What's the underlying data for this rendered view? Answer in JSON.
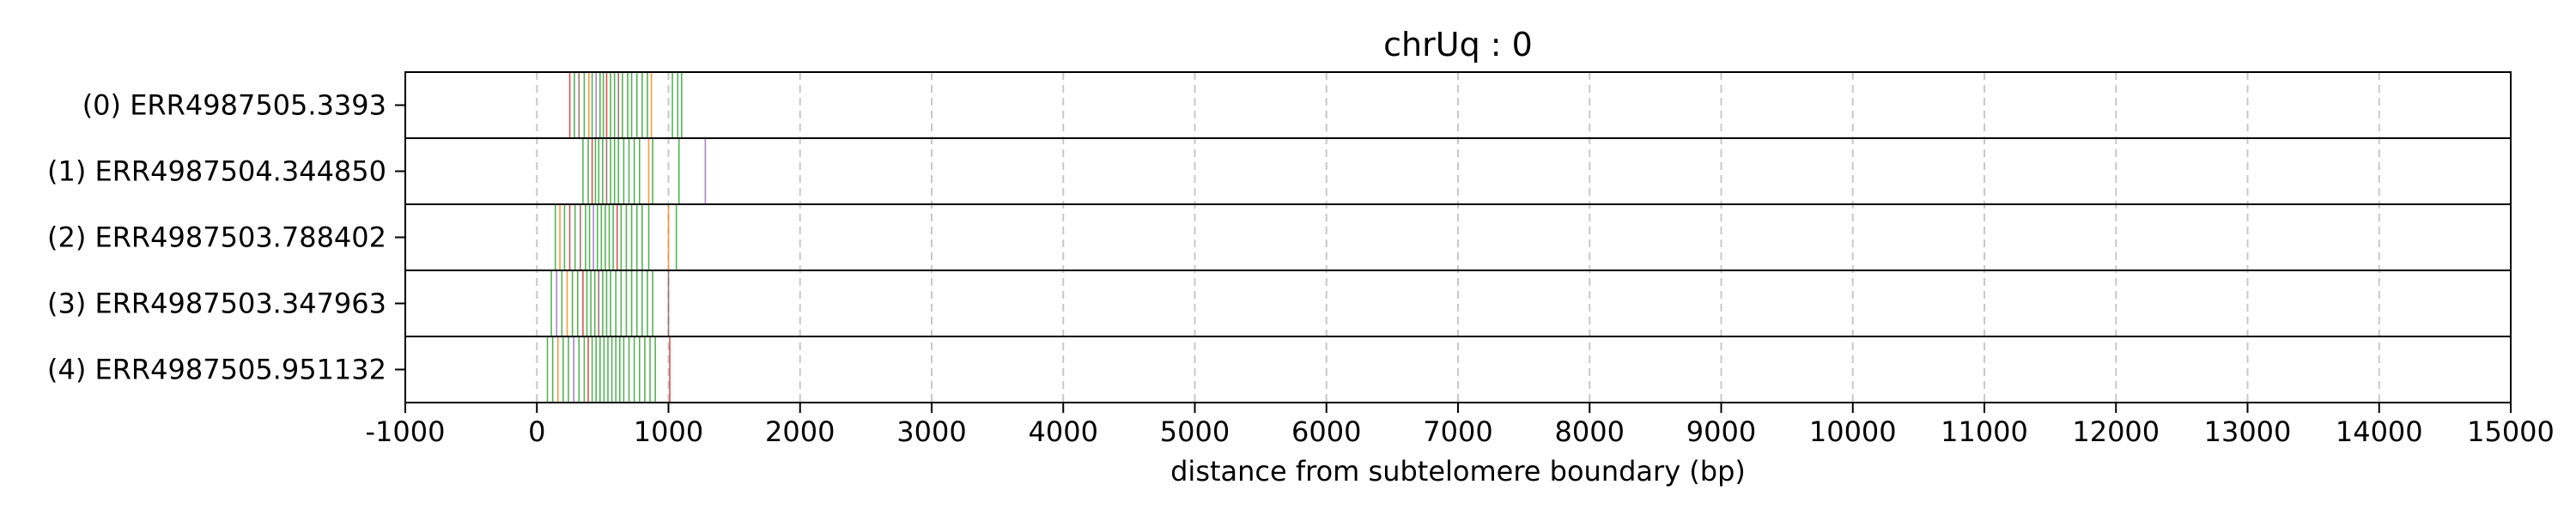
{
  "chart_data": {
    "type": "read-track",
    "title": "chrUq : 0",
    "xlabel": "distance from subtelomere boundary (bp)",
    "ylabel": "",
    "xlim": [
      -1000,
      15000
    ],
    "x_ticks": [
      -1000,
      0,
      1000,
      2000,
      3000,
      4000,
      5000,
      6000,
      7000,
      8000,
      9000,
      10000,
      11000,
      12000,
      13000,
      14000,
      15000
    ],
    "x_tick_labels": [
      "-1000",
      "0",
      "1000",
      "2000",
      "3000",
      "4000",
      "5000",
      "6000",
      "7000",
      "8000",
      "9000",
      "10000",
      "11000",
      "12000",
      "13000",
      "14000",
      "15000"
    ],
    "grid": "vertical dashed at x ticks",
    "tracks": [
      {
        "label": "(0) ERR4987505.3393",
        "marks": [
          {
            "x": 250,
            "color": "#d62728"
          },
          {
            "x": 285,
            "color": "#2ca02c"
          },
          {
            "x": 320,
            "color": "#8c564b"
          },
          {
            "x": 360,
            "color": "#2ca02c"
          },
          {
            "x": 395,
            "color": "#ff7f0e"
          },
          {
            "x": 420,
            "color": "#2ca02c"
          },
          {
            "x": 450,
            "color": "#9467bd"
          },
          {
            "x": 480,
            "color": "#2ca02c"
          },
          {
            "x": 505,
            "color": "#2ca02c"
          },
          {
            "x": 530,
            "color": "#d62728"
          },
          {
            "x": 560,
            "color": "#2ca02c"
          },
          {
            "x": 590,
            "color": "#2ca02c"
          },
          {
            "x": 620,
            "color": "#8c564b"
          },
          {
            "x": 650,
            "color": "#2ca02c"
          },
          {
            "x": 690,
            "color": "#2ca02c"
          },
          {
            "x": 720,
            "color": "#2ca02c"
          },
          {
            "x": 760,
            "color": "#2ca02c"
          },
          {
            "x": 800,
            "color": "#2ca02c"
          },
          {
            "x": 840,
            "color": "#2ca02c"
          },
          {
            "x": 870,
            "color": "#ff7f0e"
          },
          {
            "x": 1030,
            "color": "#2ca02c"
          },
          {
            "x": 1070,
            "color": "#2ca02c"
          },
          {
            "x": 1100,
            "color": "#2ca02c"
          }
        ]
      },
      {
        "label": "(1) ERR4987504.344850",
        "marks": [
          {
            "x": 350,
            "color": "#2ca02c"
          },
          {
            "x": 390,
            "color": "#2ca02c"
          },
          {
            "x": 420,
            "color": "#d62728"
          },
          {
            "x": 445,
            "color": "#2ca02c"
          },
          {
            "x": 470,
            "color": "#2ca02c"
          },
          {
            "x": 500,
            "color": "#2ca02c"
          },
          {
            "x": 530,
            "color": "#8c564b"
          },
          {
            "x": 560,
            "color": "#2ca02c"
          },
          {
            "x": 590,
            "color": "#2ca02c"
          },
          {
            "x": 620,
            "color": "#2ca02c"
          },
          {
            "x": 660,
            "color": "#2ca02c"
          },
          {
            "x": 700,
            "color": "#2ca02c"
          },
          {
            "x": 740,
            "color": "#2ca02c"
          },
          {
            "x": 780,
            "color": "#2ca02c"
          },
          {
            "x": 850,
            "color": "#ff7f0e"
          },
          {
            "x": 880,
            "color": "#2ca02c"
          },
          {
            "x": 1080,
            "color": "#2ca02c"
          },
          {
            "x": 1280,
            "color": "#9467bd"
          }
        ]
      },
      {
        "label": "(2) ERR4987503.788402",
        "marks": [
          {
            "x": 140,
            "color": "#2ca02c"
          },
          {
            "x": 175,
            "color": "#ff7f0e"
          },
          {
            "x": 210,
            "color": "#2ca02c"
          },
          {
            "x": 250,
            "color": "#d62728"
          },
          {
            "x": 290,
            "color": "#2ca02c"
          },
          {
            "x": 330,
            "color": "#8c564b"
          },
          {
            "x": 370,
            "color": "#2ca02c"
          },
          {
            "x": 400,
            "color": "#2ca02c"
          },
          {
            "x": 430,
            "color": "#9467bd"
          },
          {
            "x": 460,
            "color": "#2ca02c"
          },
          {
            "x": 490,
            "color": "#2ca02c"
          },
          {
            "x": 520,
            "color": "#2ca02c"
          },
          {
            "x": 550,
            "color": "#2ca02c"
          },
          {
            "x": 580,
            "color": "#2ca02c"
          },
          {
            "x": 610,
            "color": "#d62728"
          },
          {
            "x": 640,
            "color": "#2ca02c"
          },
          {
            "x": 680,
            "color": "#2ca02c"
          },
          {
            "x": 720,
            "color": "#2ca02c"
          },
          {
            "x": 760,
            "color": "#2ca02c"
          },
          {
            "x": 800,
            "color": "#2ca02c"
          },
          {
            "x": 850,
            "color": "#2ca02c"
          },
          {
            "x": 1000,
            "color": "#ff7f0e"
          },
          {
            "x": 1060,
            "color": "#2ca02c"
          }
        ]
      },
      {
        "label": "(3) ERR4987503.347963",
        "marks": [
          {
            "x": 110,
            "color": "#2ca02c"
          },
          {
            "x": 150,
            "color": "#9467bd"
          },
          {
            "x": 190,
            "color": "#2ca02c"
          },
          {
            "x": 230,
            "color": "#ff7f0e"
          },
          {
            "x": 270,
            "color": "#2ca02c"
          },
          {
            "x": 310,
            "color": "#2ca02c"
          },
          {
            "x": 350,
            "color": "#d62728"
          },
          {
            "x": 380,
            "color": "#2ca02c"
          },
          {
            "x": 410,
            "color": "#2ca02c"
          },
          {
            "x": 440,
            "color": "#2ca02c"
          },
          {
            "x": 470,
            "color": "#8c564b"
          },
          {
            "x": 500,
            "color": "#2ca02c"
          },
          {
            "x": 530,
            "color": "#2ca02c"
          },
          {
            "x": 560,
            "color": "#2ca02c"
          },
          {
            "x": 600,
            "color": "#2ca02c"
          },
          {
            "x": 640,
            "color": "#2ca02c"
          },
          {
            "x": 680,
            "color": "#2ca02c"
          },
          {
            "x": 720,
            "color": "#2ca02c"
          },
          {
            "x": 760,
            "color": "#2ca02c"
          },
          {
            "x": 800,
            "color": "#2ca02c"
          },
          {
            "x": 840,
            "color": "#2ca02c"
          },
          {
            "x": 880,
            "color": "#2ca02c"
          },
          {
            "x": 1000,
            "color": "#8c564b"
          }
        ]
      },
      {
        "label": "(4) ERR4987505.951132",
        "marks": [
          {
            "x": 80,
            "color": "#2ca02c"
          },
          {
            "x": 120,
            "color": "#2ca02c"
          },
          {
            "x": 160,
            "color": "#ff7f0e"
          },
          {
            "x": 200,
            "color": "#2ca02c"
          },
          {
            "x": 240,
            "color": "#2ca02c"
          },
          {
            "x": 280,
            "color": "#9467bd"
          },
          {
            "x": 320,
            "color": "#2ca02c"
          },
          {
            "x": 360,
            "color": "#2ca02c"
          },
          {
            "x": 390,
            "color": "#d62728"
          },
          {
            "x": 420,
            "color": "#2ca02c"
          },
          {
            "x": 450,
            "color": "#2ca02c"
          },
          {
            "x": 480,
            "color": "#2ca02c"
          },
          {
            "x": 510,
            "color": "#2ca02c"
          },
          {
            "x": 540,
            "color": "#2ca02c"
          },
          {
            "x": 570,
            "color": "#2ca02c"
          },
          {
            "x": 600,
            "color": "#2ca02c"
          },
          {
            "x": 630,
            "color": "#2ca02c"
          },
          {
            "x": 660,
            "color": "#2ca02c"
          },
          {
            "x": 700,
            "color": "#2ca02c"
          },
          {
            "x": 740,
            "color": "#2ca02c"
          },
          {
            "x": 780,
            "color": "#2ca02c"
          },
          {
            "x": 820,
            "color": "#2ca02c"
          },
          {
            "x": 860,
            "color": "#2ca02c"
          },
          {
            "x": 900,
            "color": "#2ca02c"
          },
          {
            "x": 1010,
            "color": "#d62728"
          }
        ]
      }
    ]
  }
}
